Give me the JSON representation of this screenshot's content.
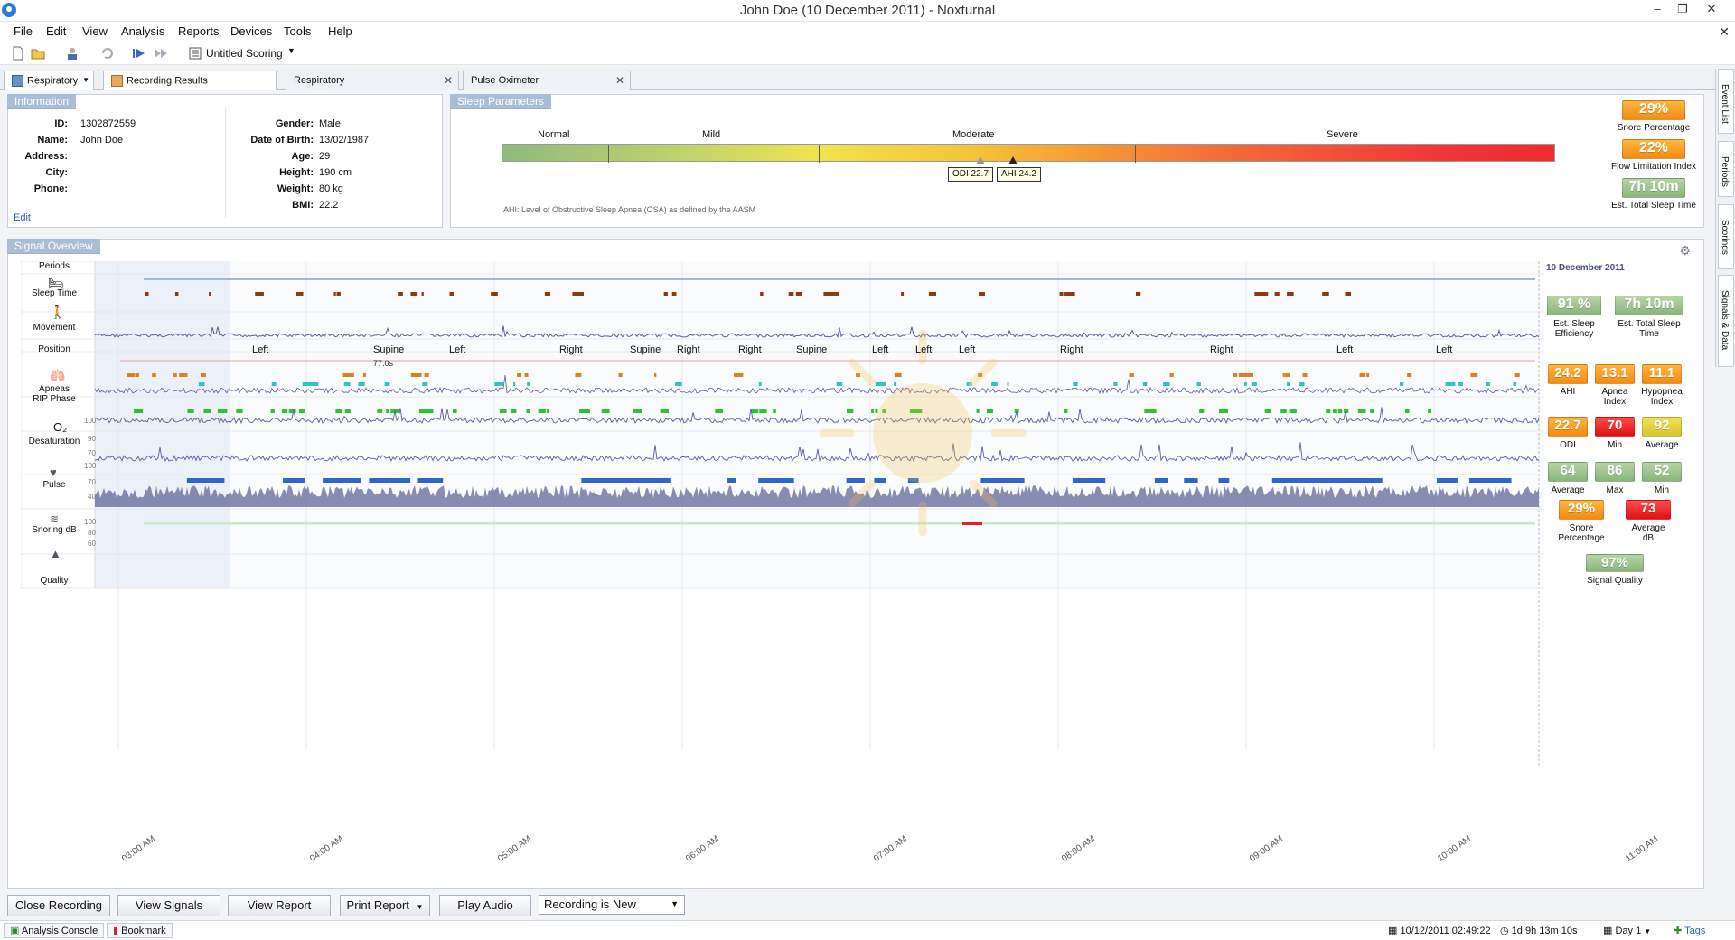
{
  "window": {
    "title": "John Doe (10 December 2011)  -  Noxturnal"
  },
  "menu": [
    "File",
    "Edit",
    "View",
    "Analysis",
    "Reports",
    "Devices",
    "Tools",
    "Help"
  ],
  "toolbar": {
    "scoring_label": "Untitled Scoring"
  },
  "tabs": {
    "workspace": "Respiratory",
    "items": [
      {
        "label": "Recording Results"
      },
      {
        "label": "Respiratory"
      },
      {
        "label": "Pulse Oximeter"
      }
    ]
  },
  "right_dock": [
    "Event List",
    "Periods",
    "Scorings",
    "Signals & Data"
  ],
  "information": {
    "header": "Information",
    "left": [
      {
        "label": "ID:",
        "value": "1302872559"
      },
      {
        "label": "Name:",
        "value": "John Doe"
      },
      {
        "label": "Address:",
        "value": ""
      },
      {
        "label": "City:",
        "value": ""
      },
      {
        "label": "Phone:",
        "value": ""
      }
    ],
    "right": [
      {
        "label": "Gender:",
        "value": "Male"
      },
      {
        "label": "Date of Birth:",
        "value": "13/02/1987"
      },
      {
        "label": "Age:",
        "value": "29"
      },
      {
        "label": "Height:",
        "value": "190 cm"
      },
      {
        "label": "Weight:",
        "value": "80 kg"
      },
      {
        "label": "BMI:",
        "value": "22.2"
      }
    ],
    "edit_link": "Edit"
  },
  "sleep_parameters": {
    "header": "Sleep Parameters",
    "severity_labels": [
      "Normal",
      "Mild",
      "Moderate",
      "Severe"
    ],
    "odi_marker": "ODI 22.7",
    "ahi_marker": "AHI 24.2",
    "footnote": "AHI: Level of Obstructive Sleep Apnea (OSA) as defined by the AASM",
    "badges": [
      {
        "value": "29%",
        "label": "Snore Percentage",
        "color": "orange"
      },
      {
        "value": "22%",
        "label": "Flow Limitation Index",
        "color": "orange"
      },
      {
        "value": "7h 10m",
        "label": "Est. Total Sleep Time",
        "color": "green"
      }
    ]
  },
  "signal_overview": {
    "header": "Signal Overview",
    "date": "10 December 2011",
    "rows": [
      {
        "label": "Periods"
      },
      {
        "label": "Sleep Time"
      },
      {
        "label": "Movement"
      },
      {
        "label": "Position"
      },
      {
        "label": "Apneas\nRIP Phase"
      },
      {
        "label": "Desaturation"
      },
      {
        "label": "Pulse"
      },
      {
        "label": "Snoring dB"
      },
      {
        "label": "Quality"
      }
    ],
    "positions": [
      "Left",
      "Supine",
      "Left",
      "Right",
      "Supine",
      "Right",
      "Right",
      "Supine",
      "Left",
      "Left",
      "Left",
      "Right",
      "Right",
      "Left",
      "Left"
    ],
    "duration_note": "77.0s",
    "y_ticks": {
      "desat": [
        "100",
        "90",
        "70"
      ],
      "pulse": [
        "100",
        "70",
        "40"
      ],
      "snore": [
        "100",
        "80",
        "60"
      ]
    },
    "time_axis": [
      "03:00 AM",
      "04:00 AM",
      "05:00 AM",
      "06:00 AM",
      "07:00 AM",
      "08:00 AM",
      "09:00 AM",
      "10:00 AM",
      "11:00 AM"
    ],
    "stats": {
      "sleep": [
        {
          "value": "91 %",
          "label": "Est. Sleep Efficiency",
          "color": "green"
        },
        {
          "value": "7h 10m",
          "label": "Est. Total Sleep Time",
          "color": "green"
        }
      ],
      "apnea": [
        {
          "value": "24.2",
          "label": "AHI",
          "color": "orange"
        },
        {
          "value": "13.1",
          "label": "Apnea Index",
          "color": "orange"
        },
        {
          "value": "11.1",
          "label": "Hypopnea Index",
          "color": "orange"
        }
      ],
      "desat": [
        {
          "value": "22.7",
          "label": "ODI",
          "color": "orange"
        },
        {
          "value": "70",
          "label": "Min",
          "color": "red"
        },
        {
          "value": "92",
          "label": "Average",
          "color": "yellow"
        }
      ],
      "pulse": [
        {
          "value": "64",
          "label": "Average",
          "color": "green"
        },
        {
          "value": "86",
          "label": "Max",
          "color": "green"
        },
        {
          "value": "52",
          "label": "Min",
          "color": "green"
        }
      ],
      "snore": [
        {
          "value": "29%",
          "label": "Snore Percentage",
          "color": "orange"
        },
        {
          "value": "73",
          "label": "Average dB",
          "color": "red"
        }
      ],
      "quality": [
        {
          "value": "97%",
          "label": "Signal Quality",
          "color": "green"
        }
      ]
    }
  },
  "bottom_buttons": {
    "close": "Close Recording",
    "signals": "View Signals",
    "report": "View Report",
    "print": "Print Report",
    "audio": "Play Audio",
    "status_select": "Recording is New"
  },
  "statusbar": {
    "analysis_console": "Analysis Console",
    "bookmark": "Bookmark",
    "datetime": "10/12/2011 02:49:22",
    "duration": "1d 9h 13m 10s",
    "day": "Day 1",
    "tags": "Tags"
  },
  "colors": {
    "accent": "#a9bdd6",
    "badge_green": "#88b57a",
    "badge_orange": "#f38a13",
    "badge_red": "#e01010",
    "trace": "#5a5e9a"
  }
}
